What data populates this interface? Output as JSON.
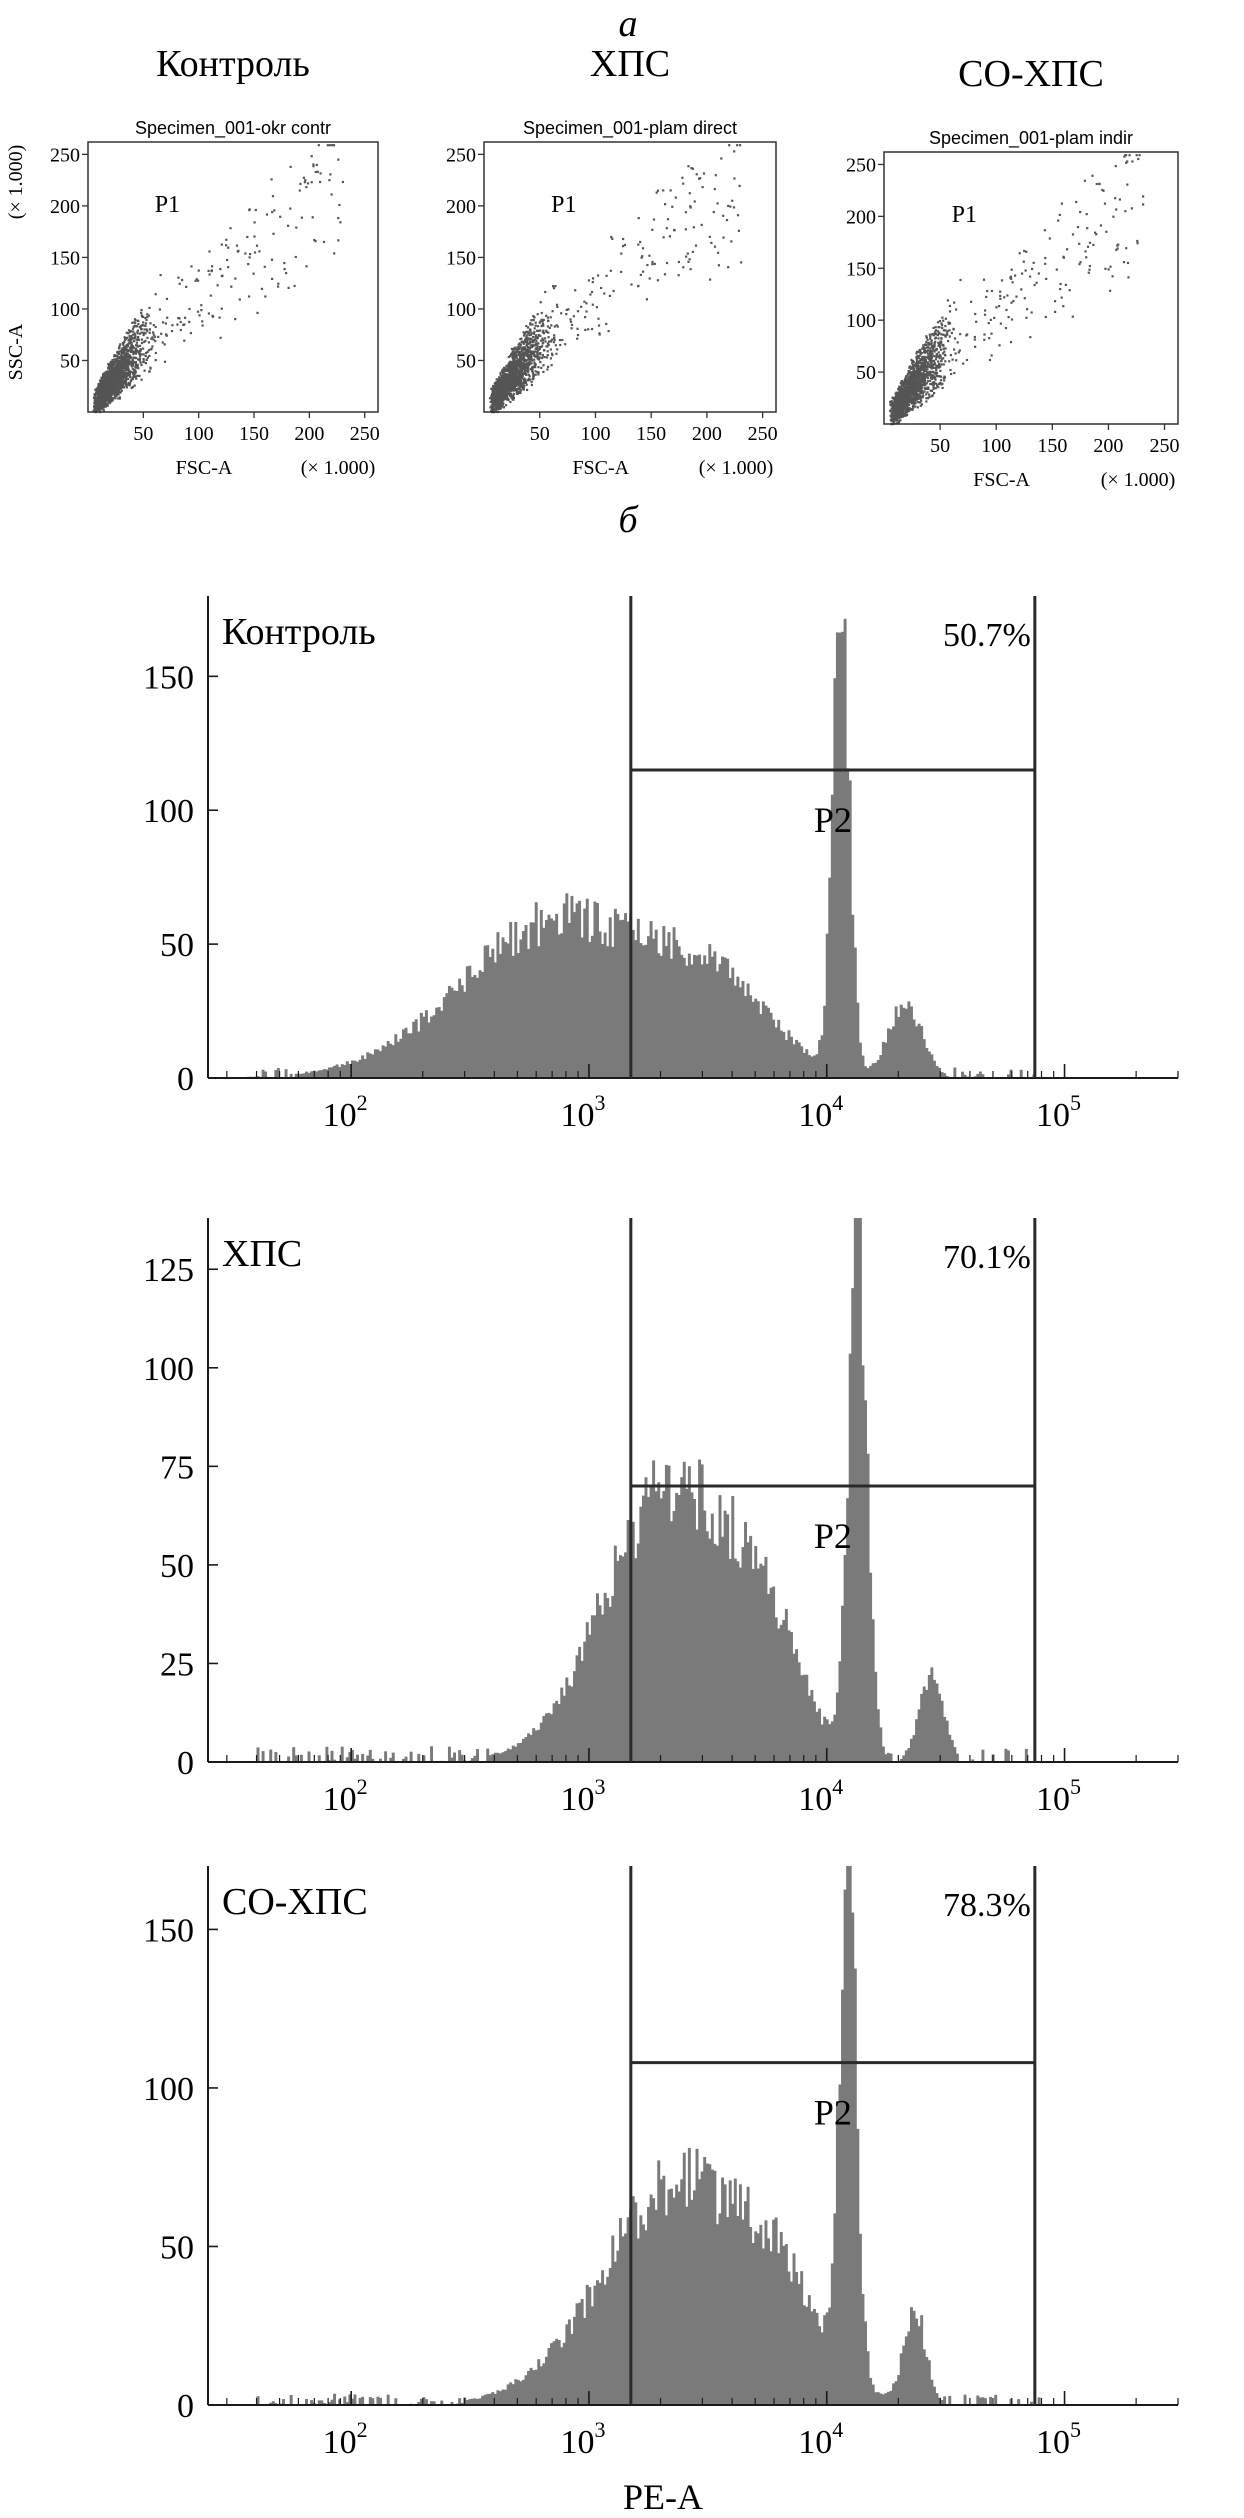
{
  "figure": {
    "panel_a_label": "а",
    "panel_b_label": "б",
    "colors": {
      "axis": "#1a1a1a",
      "hist_fill": "#7a7a7a",
      "dots": "#555555"
    }
  },
  "chart_data": [
    {
      "type": "scatter",
      "title": "Контроль",
      "subtitle": "Specimen_001-okr contr",
      "xlabel": "FSC-A",
      "ylabel": "SSC-A",
      "x_unit": "(× 1.000)",
      "y_unit": "(× 1.000)",
      "xlim": [
        0,
        262
      ],
      "ylim": [
        0,
        262
      ],
      "xticks": [
        "50",
        "100",
        "150",
        "200",
        "250"
      ],
      "yticks": [
        "50",
        "100",
        "150",
        "200",
        "250"
      ],
      "gate_label": "P1",
      "x_mean": 28,
      "y_mean": 48,
      "slope": 1.35
    },
    {
      "type": "scatter",
      "title": "ХПС",
      "subtitle": "Specimen_001-plam direct",
      "xlabel": "FSC-A",
      "ylabel": "",
      "x_unit": "(× 1.000)",
      "y_unit": "(× 1.000)",
      "xlim": [
        0,
        262
      ],
      "ylim": [
        0,
        262
      ],
      "xticks": [
        "50",
        "100",
        "150",
        "200",
        "250"
      ],
      "yticks": [
        "50",
        "100",
        "150",
        "200",
        "250"
      ],
      "gate_label": "P1",
      "x_mean": 30,
      "y_mean": 50,
      "slope": 1.35
    },
    {
      "type": "scatter",
      "title": "СО-ХПС",
      "subtitle": "Specimen_001-plam indir",
      "xlabel": "FSC-A",
      "ylabel": "",
      "x_unit": "(× 1.000)",
      "y_unit": "",
      "xlim": [
        0,
        262
      ],
      "ylim": [
        0,
        262
      ],
      "xticks": [
        "50",
        "100",
        "150",
        "200",
        "250"
      ],
      "yticks": [
        "50",
        "100",
        "150",
        "200",
        "250"
      ],
      "gate_label": "P1",
      "x_mean": 30,
      "y_mean": 52,
      "slope": 1.4
    },
    {
      "type": "area",
      "scale": "log",
      "sample_label": "Контроль",
      "xlabel": "",
      "xlim": [
        25,
        300000
      ],
      "ylim": [
        0,
        180
      ],
      "xticks": [
        {
          "base": "10",
          "exp": "2",
          "value": 100
        },
        {
          "base": "10",
          "exp": "3",
          "value": 1000
        },
        {
          "base": "10",
          "exp": "4",
          "value": 10000
        },
        {
          "base": "10",
          "exp": "5",
          "value": 100000
        }
      ],
      "yticks": [
        "0",
        "50",
        "100",
        "150"
      ],
      "gate_label": "P2",
      "gate_percent": "50.7%",
      "gate_x": [
        1500,
        75000
      ],
      "gate_level": 115,
      "components": [
        {
          "center_log": 2.9,
          "sigma": 0.42,
          "height": 62
        },
        {
          "center_log": 3.55,
          "sigma": 0.22,
          "height": 26
        },
        {
          "center_log": 4.06,
          "sigma": 0.035,
          "height": 180
        },
        {
          "center_log": 4.33,
          "sigma": 0.07,
          "height": 28
        }
      ]
    },
    {
      "type": "area",
      "scale": "log",
      "sample_label": "ХПС",
      "xlabel": "",
      "xlim": [
        25,
        300000
      ],
      "ylim": [
        0,
        138
      ],
      "xticks": [
        {
          "base": "10",
          "exp": "2",
          "value": 100
        },
        {
          "base": "10",
          "exp": "3",
          "value": 1000
        },
        {
          "base": "10",
          "exp": "4",
          "value": 10000
        },
        {
          "base": "10",
          "exp": "5",
          "value": 100000
        }
      ],
      "yticks": [
        "0",
        "25",
        "50",
        "75",
        "100",
        "125"
      ],
      "gate_label": "P2",
      "gate_percent": "70.1%",
      "gate_x": [
        1500,
        75000
      ],
      "gate_level": 70,
      "components": [
        {
          "center_log": 3.35,
          "sigma": 0.28,
          "height": 72
        },
        {
          "center_log": 3.75,
          "sigma": 0.14,
          "height": 22
        },
        {
          "center_log": 4.13,
          "sigma": 0.04,
          "height": 138
        },
        {
          "center_log": 4.44,
          "sigma": 0.05,
          "height": 24
        }
      ]
    },
    {
      "type": "area",
      "scale": "log",
      "sample_label": "СО-ХПС",
      "xlabel": "PE-A",
      "xlim": [
        25,
        300000
      ],
      "ylim": [
        0,
        170
      ],
      "xticks": [
        {
          "base": "10",
          "exp": "2",
          "value": 100
        },
        {
          "base": "10",
          "exp": "3",
          "value": 1000
        },
        {
          "base": "10",
          "exp": "4",
          "value": 10000
        },
        {
          "base": "10",
          "exp": "5",
          "value": 100000
        }
      ],
      "yticks": [
        "0",
        "50",
        "100",
        "150"
      ],
      "gate_label": "P2",
      "gate_percent": "78.3%",
      "gate_x": [
        1500,
        75000
      ],
      "gate_level": 108,
      "components": [
        {
          "center_log": 3.4,
          "sigma": 0.33,
          "height": 74
        },
        {
          "center_log": 3.82,
          "sigma": 0.13,
          "height": 18
        },
        {
          "center_log": 4.09,
          "sigma": 0.035,
          "height": 168
        },
        {
          "center_log": 4.37,
          "sigma": 0.045,
          "height": 30
        }
      ]
    }
  ]
}
